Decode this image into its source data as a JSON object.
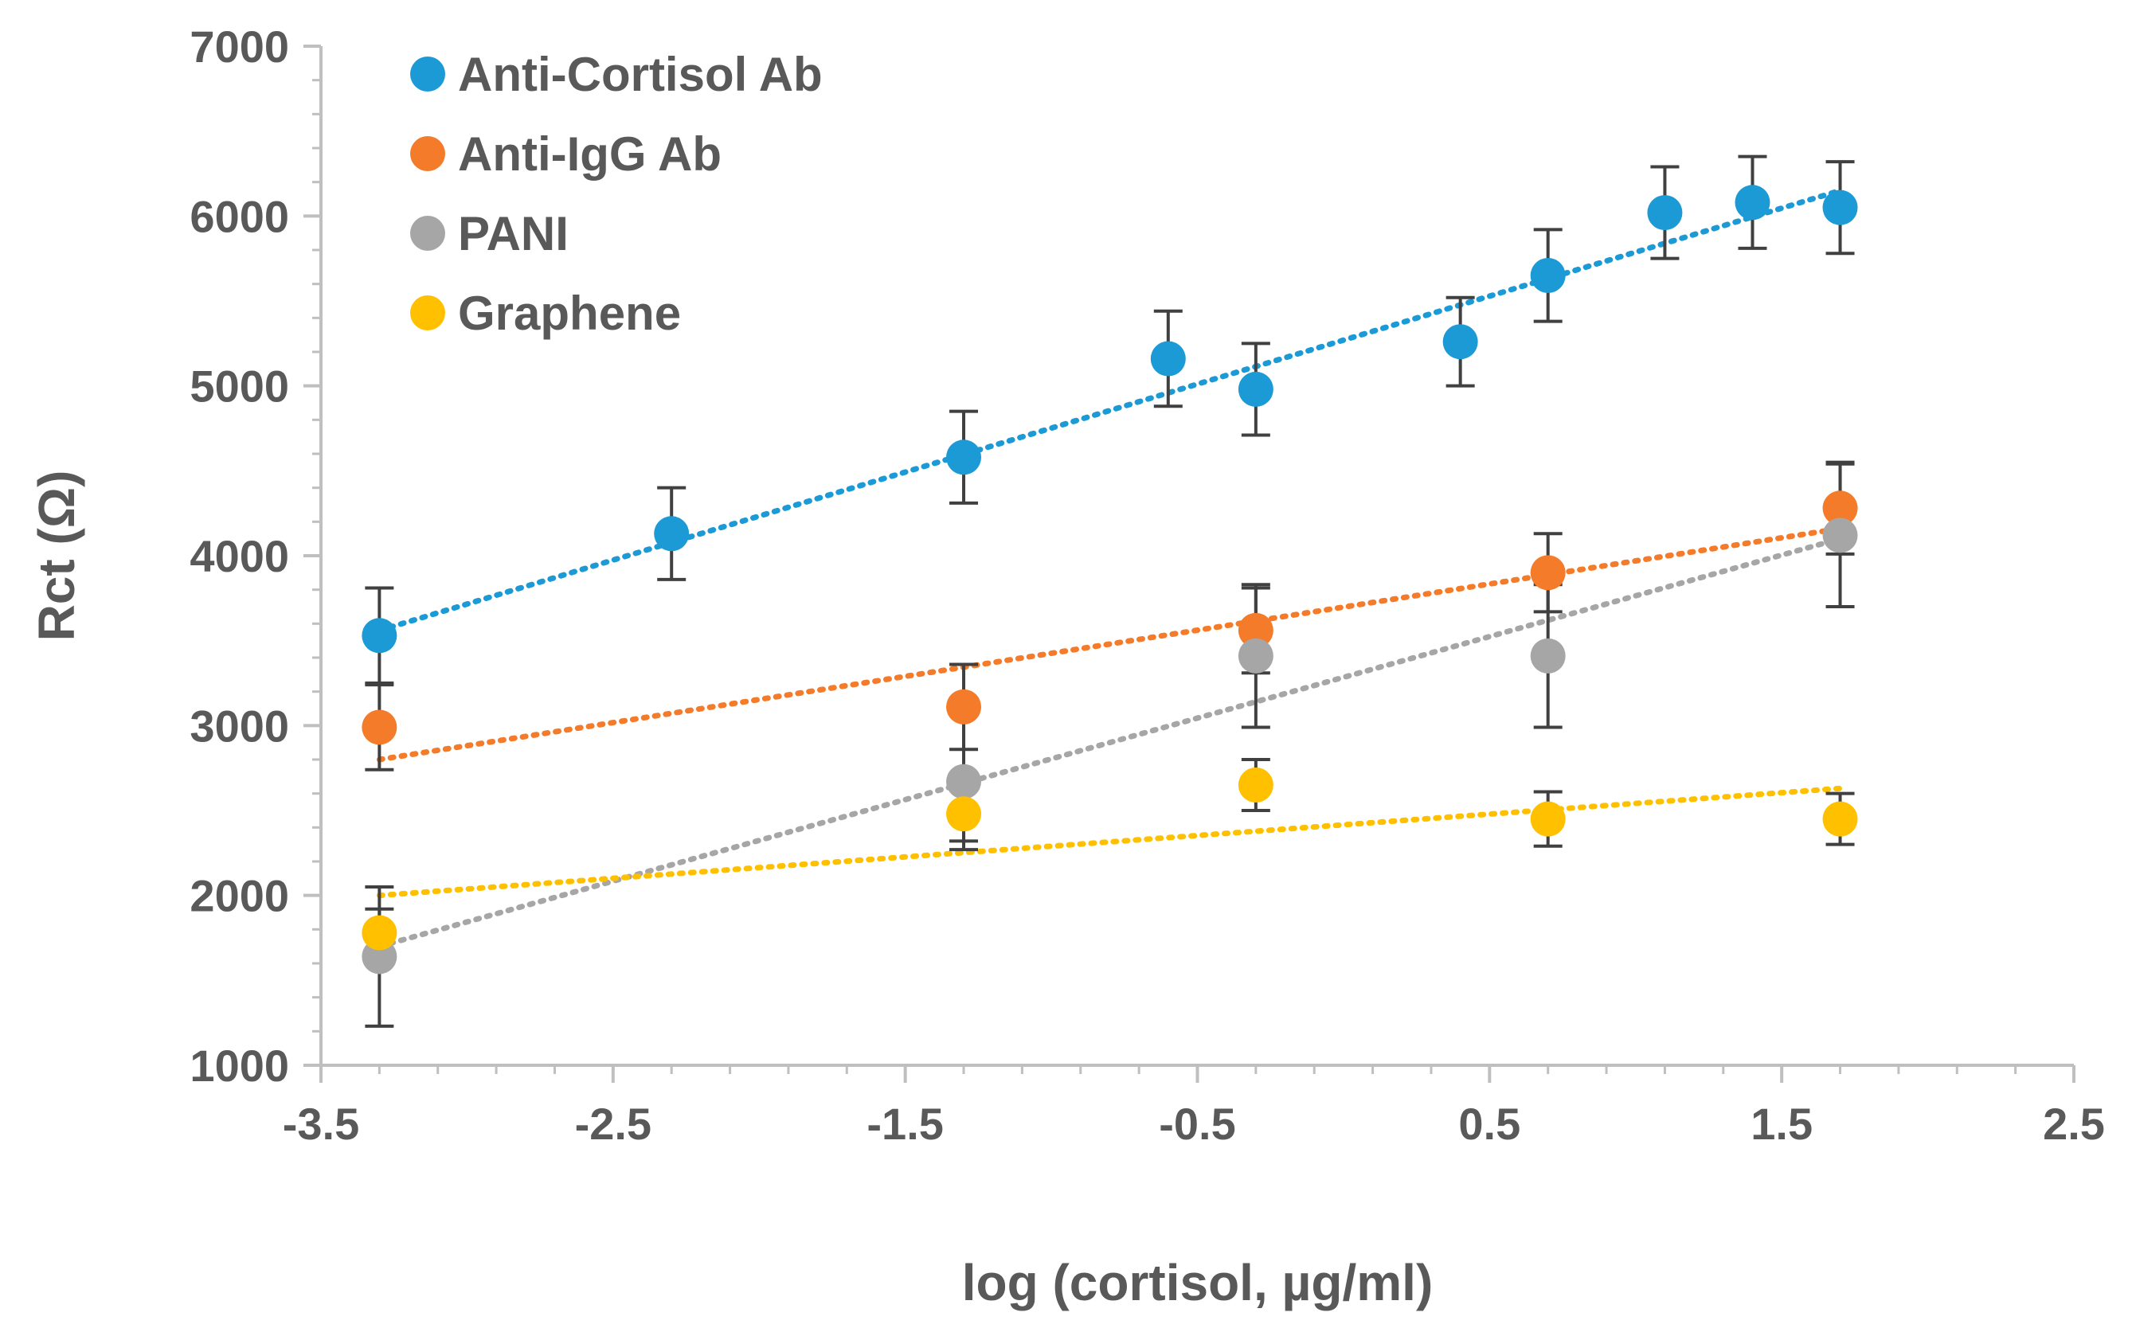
{
  "chart_data": {
    "type": "scatter",
    "title": "",
    "xlabel": "log (cortisol, µg/ml)",
    "ylabel": "Rct (Ω)",
    "xlim": [
      -3.5,
      2.5
    ],
    "ylim": [
      1000,
      7000
    ],
    "x_ticks": [
      -3.5,
      -2.5,
      -1.5,
      -0.5,
      0.5,
      1.5,
      2.5
    ],
    "x_tick_labels": [
      "-3.5",
      "-2.5",
      "-1.5",
      "-0.5",
      "0.5",
      "1.5",
      "2.5"
    ],
    "y_ticks": [
      1000,
      2000,
      3000,
      4000,
      5000,
      6000,
      7000
    ],
    "y_tick_labels": [
      "1000",
      "2000",
      "3000",
      "4000",
      "5000",
      "6000",
      "7000"
    ],
    "grid": false,
    "legend_position": "top-left",
    "series": [
      {
        "name": "Anti-Cortisol Ab",
        "color": "#1B9AD6",
        "x": [
          -3.3,
          -2.3,
          -1.3,
          -0.6,
          -0.3,
          0.4,
          0.7,
          1.1,
          1.4,
          1.7
        ],
        "y": [
          3530,
          4130,
          4580,
          5160,
          4980,
          5260,
          5650,
          6020,
          6080,
          6050
        ],
        "err": [
          280,
          270,
          270,
          280,
          270,
          260,
          270,
          270,
          270,
          270
        ],
        "trendline": {
          "x": [
            -3.3,
            1.7
          ],
          "y": [
            3560,
            6150
          ]
        }
      },
      {
        "name": "Anti-IgG Ab",
        "color": "#F47B2A",
        "x": [
          -3.3,
          -1.3,
          -0.3,
          0.7,
          1.7
        ],
        "y": [
          2990,
          3110,
          3560,
          3900,
          4280
        ],
        "err": [
          250,
          250,
          250,
          230,
          270
        ],
        "trendline": {
          "x": [
            -3.3,
            1.7
          ],
          "y": [
            2800,
            4160
          ]
        }
      },
      {
        "name": "PANI",
        "color": "#A6A6A6",
        "x": [
          -3.3,
          -1.3,
          -0.3,
          0.7,
          1.7
        ],
        "y": [
          1640,
          2670,
          3410,
          3410,
          4120
        ],
        "err": [
          410,
          400,
          420,
          420,
          420
        ],
        "trendline": {
          "x": [
            -3.3,
            1.7
          ],
          "y": [
            1700,
            4100
          ]
        }
      },
      {
        "name": "Graphene",
        "color": "#FFC000",
        "x": [
          -3.3,
          -1.3,
          -0.3,
          0.7,
          1.7
        ],
        "y": [
          1780,
          2480,
          2650,
          2450,
          2450
        ],
        "err": [
          140,
          160,
          150,
          160,
          150
        ],
        "trendline": {
          "x": [
            -3.3,
            1.7
          ],
          "y": [
            2000,
            2630
          ]
        }
      }
    ]
  }
}
